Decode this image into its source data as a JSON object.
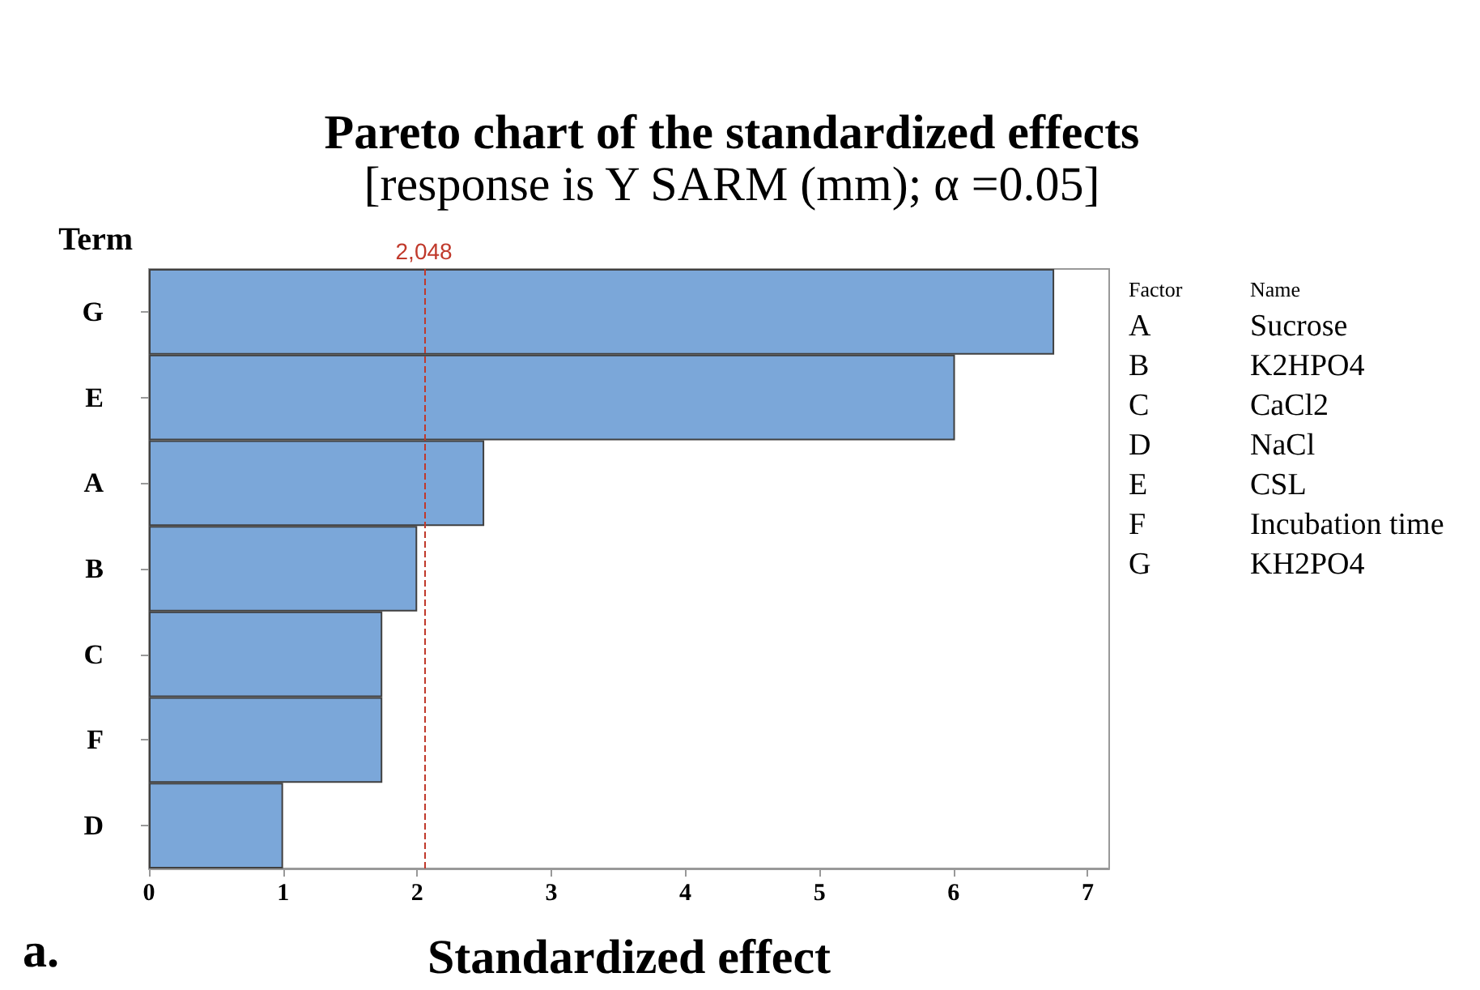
{
  "chart_data": {
    "type": "bar",
    "orientation": "horizontal",
    "title": "Pareto chart of the standardized effects",
    "subtitle": "[response is Y SARM (mm); α =0.05]",
    "xlabel": "Standardized effect",
    "ylabel": "Term",
    "categories": [
      "G",
      "E",
      "A",
      "B",
      "C",
      "F",
      "D"
    ],
    "values": [
      6.75,
      6.01,
      2.5,
      2.0,
      1.74,
      1.74,
      1.0
    ],
    "color": "#7ba7d9",
    "xlim": [
      0,
      7.16
    ],
    "xticks": [
      0,
      1,
      2,
      3,
      4,
      5,
      6,
      7
    ],
    "ref_lines": [
      {
        "axis": "x",
        "value": 2.048,
        "label": "2,048",
        "color": "#c0392b",
        "line_style": "dashed"
      }
    ],
    "grid": false,
    "annotations": [
      "Factor",
      "Name",
      "A",
      "Sucrose",
      "B",
      "K2HPO4",
      "C",
      "CaCl2",
      "D",
      "NaCl",
      "E",
      "CSL",
      "F",
      "Incubation time",
      "G",
      "KH2PO4",
      "a."
    ]
  }
}
